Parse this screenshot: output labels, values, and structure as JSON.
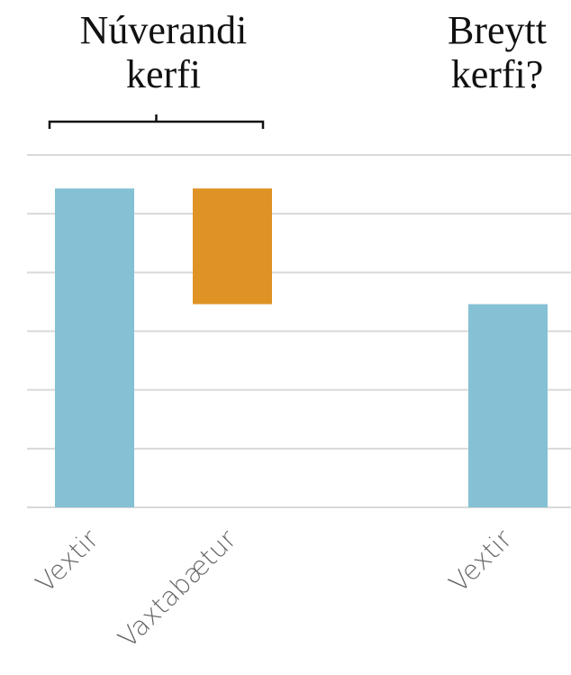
{
  "chart_data": {
    "type": "waterfall",
    "categories": [
      "Vextir",
      "Vaxtabætur",
      null,
      "Vextir"
    ],
    "values": [
      5.43,
      -1.97,
      null,
      3.46
    ],
    "measure": [
      "absolute",
      "relative",
      null,
      "absolute"
    ],
    "colors": {
      "absolute": "#85c1d4",
      "relative": "#de9324"
    },
    "ylim": [
      0,
      6
    ],
    "yticks": [
      0,
      1,
      2,
      3,
      4,
      5,
      6
    ],
    "grid": true,
    "annotations": [
      {
        "lines": [
          "Núverandi",
          "kerfi"
        ],
        "categories": [
          0,
          1
        ]
      },
      {
        "lines": [
          "Breytt",
          "kerfi?"
        ],
        "categories": [
          3,
          3
        ]
      }
    ]
  }
}
